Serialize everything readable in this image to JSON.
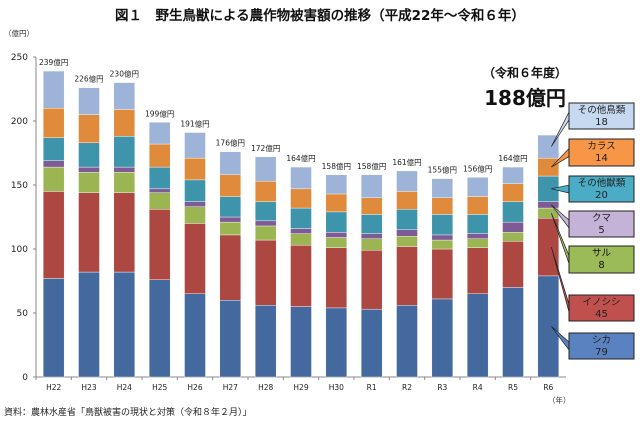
{
  "chart_data": {
    "type": "bar",
    "stacked": true,
    "title": "図１　野生鳥獣による農作物被害額の推移（平成22年～令和６年）",
    "ylabel": "（億円）",
    "xlabel": "（年）",
    "ylim": [
      0,
      250
    ],
    "yticks": [
      "0",
      "50",
      "100",
      "150",
      "200",
      "250"
    ],
    "categories": [
      "H22",
      "H23",
      "H24",
      "H25",
      "H26",
      "H27",
      "H28",
      "H29",
      "H30",
      "R1",
      "R2",
      "R3",
      "R4",
      "R5",
      "R6"
    ],
    "totals": [
      "239億円",
      "226億円",
      "230億円",
      "199億円",
      "191億円",
      "176億円",
      "172億円",
      "164億円",
      "158億円",
      "158億円",
      "161億円",
      "155億円",
      "156億円",
      "164億円",
      ""
    ],
    "series": [
      {
        "name": "シカ",
        "color": "#44699f",
        "legend_color": "#5a82c0",
        "values": [
          77,
          82,
          82,
          76,
          65,
          60,
          56,
          55,
          54,
          53,
          56,
          61,
          65,
          70,
          79
        ]
      },
      {
        "name": "イノシシ",
        "color": "#ad4741",
        "legend_color": "#c0504d",
        "values": [
          68,
          62,
          62,
          55,
          55,
          51,
          51,
          48,
          47,
          46,
          46,
          39,
          36,
          36,
          45
        ]
      },
      {
        "name": "サル",
        "color": "#9cb553",
        "legend_color": "#9bbb59",
        "values": [
          19,
          16,
          16,
          13,
          13,
          10,
          11,
          9,
          8,
          9,
          8,
          7,
          7,
          7,
          8
        ]
      },
      {
        "name": "クマ",
        "color": "#7e5b94",
        "legend_color": "#c4b3d6",
        "values": [
          5,
          4,
          4,
          3,
          4,
          4,
          4,
          4,
          4,
          4,
          5,
          4,
          4,
          8,
          5
        ]
      },
      {
        "name": "その他獣類",
        "color": "#3e95ab",
        "legend_color": "#4bacc6",
        "values": [
          18,
          19,
          24,
          17,
          17,
          16,
          15,
          16,
          16,
          15,
          16,
          16,
          15,
          16,
          20
        ]
      },
      {
        "name": "カラス",
        "color": "#e08a3b",
        "legend_color": "#f79646",
        "values": [
          23,
          22,
          21,
          18,
          17,
          17,
          16,
          15,
          14,
          13,
          14,
          13,
          14,
          14,
          14
        ]
      },
      {
        "name": "その他鳥類",
        "color": "#9db3d7",
        "legend_color": "#c6d9f1",
        "values": [
          29,
          21,
          21,
          17,
          20,
          18,
          19,
          17,
          15,
          18,
          16,
          15,
          15,
          13,
          18
        ]
      }
    ],
    "annotation": {
      "line1": "（令和６年度）",
      "line2": "188億円"
    },
    "legend_placement": "right callouts"
  },
  "source": "資料：農林水産省「鳥獣被害の現状と対策（令和８年２月）」"
}
